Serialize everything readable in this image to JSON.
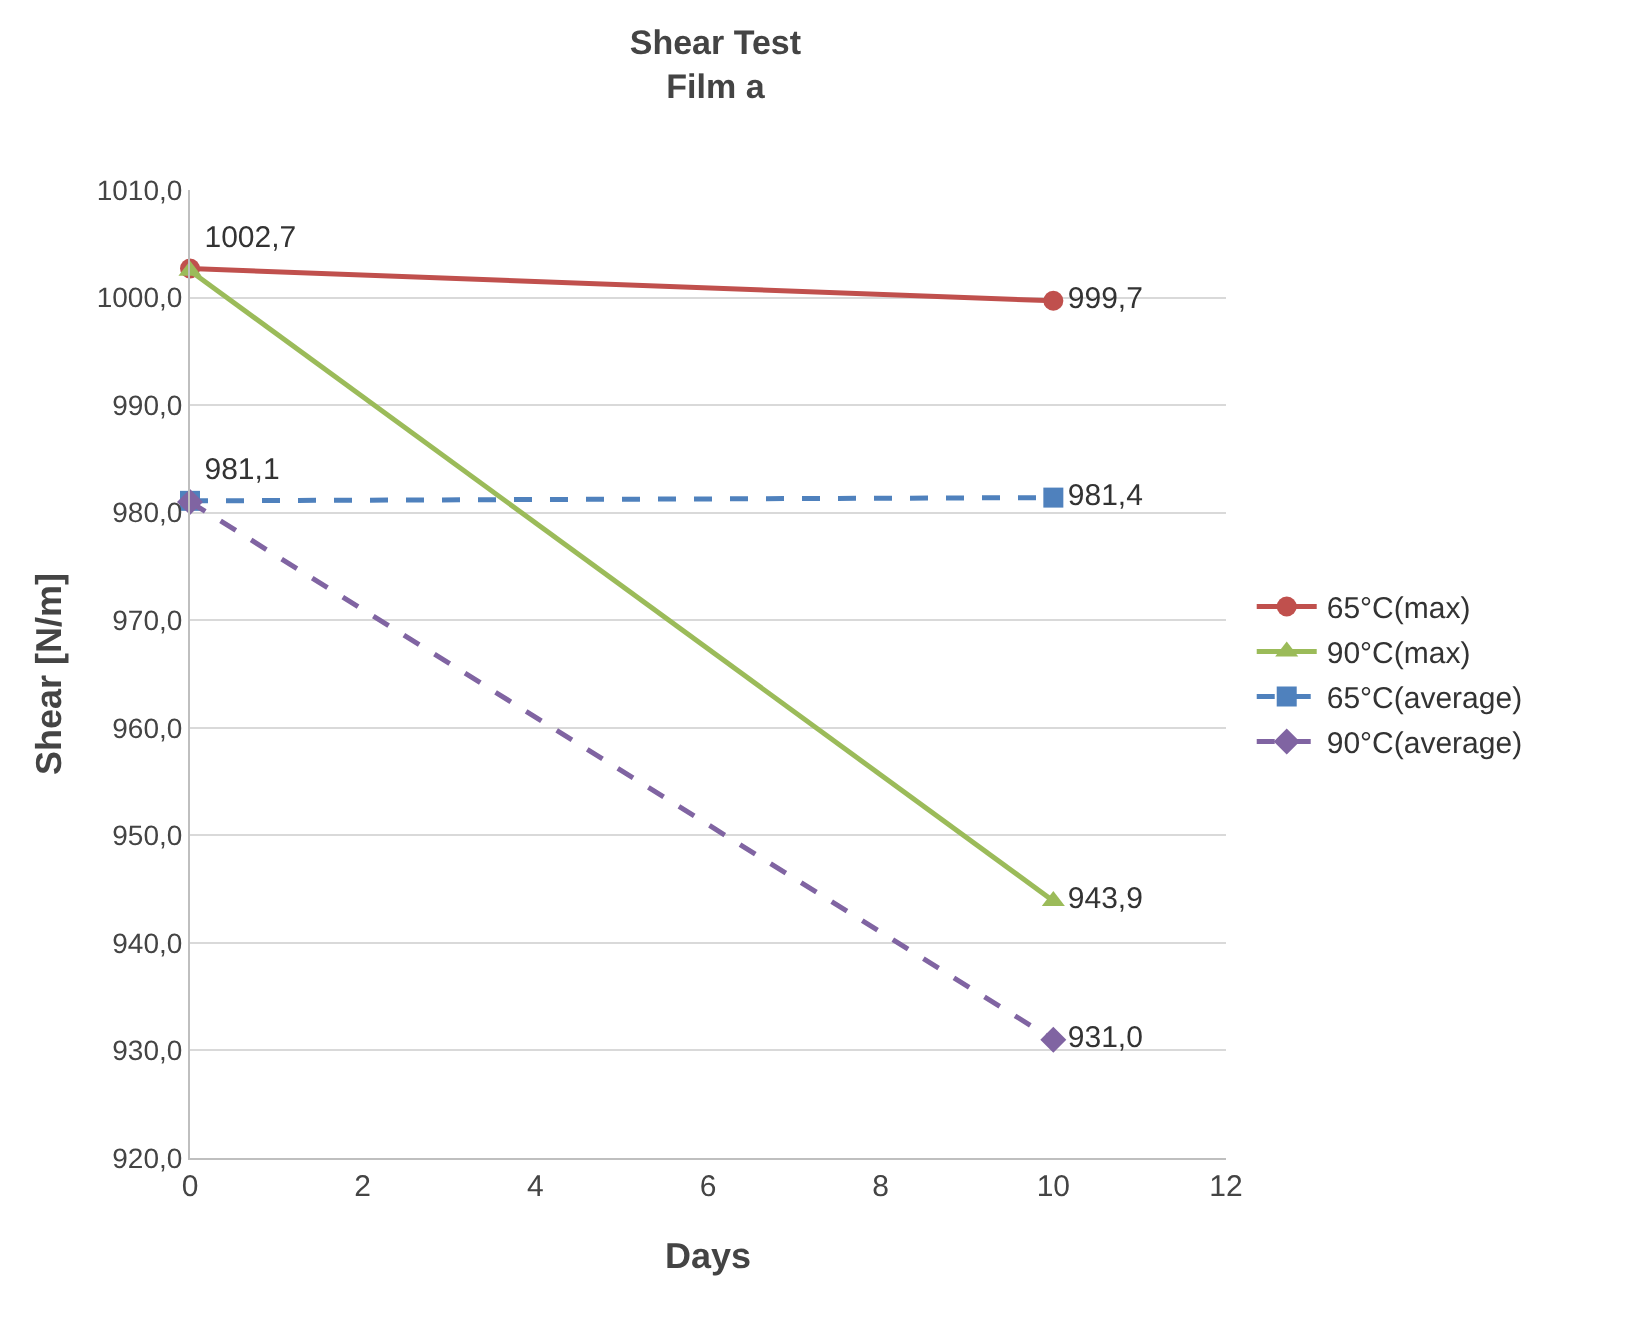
{
  "chart_data": {
    "type": "line",
    "title": "Shear Test\nFilm a",
    "xlabel": "Days",
    "ylabel": "Shear [N/m]",
    "x": [
      0,
      10
    ],
    "series": [
      {
        "name": "65°C(max)",
        "color": "#c0504d",
        "values": [
          1002.7,
          999.7
        ],
        "marker": "circle",
        "line_style": "solid",
        "value_labels": [
          "1002,7",
          "999,7"
        ]
      },
      {
        "name": "90°C(max)",
        "color": "#9bbb59",
        "values": [
          1002.5,
          943.9
        ],
        "marker": "triangle",
        "line_style": "solid",
        "value_labels": [
          null,
          "943,9"
        ]
      },
      {
        "name": "65°C(average)",
        "color": "#4f81bd",
        "values": [
          981.1,
          981.4
        ],
        "marker": "square",
        "line_style": "dashed",
        "value_labels": [
          "981,1",
          "981,4"
        ]
      },
      {
        "name": "90°C(average)",
        "color": "#8064a2",
        "values": [
          981.0,
          931.0
        ],
        "marker": "diamond",
        "line_style": "dashed",
        "value_labels": [
          null,
          "931,0"
        ]
      }
    ],
    "xlim": [
      0,
      12
    ],
    "xticks": [
      0,
      2,
      4,
      6,
      8,
      10,
      12
    ],
    "ylim": [
      920,
      1010
    ],
    "yticks": [
      {
        "value": 920,
        "label": "920,0"
      },
      {
        "value": 930,
        "label": "930,0"
      },
      {
        "value": 940,
        "label": "940,0"
      },
      {
        "value": 950,
        "label": "950,0"
      },
      {
        "value": 960,
        "label": "960,0"
      },
      {
        "value": 970,
        "label": "970,0"
      },
      {
        "value": 980,
        "label": "980,0"
      },
      {
        "value": 990,
        "label": "990,0"
      },
      {
        "value": 1000,
        "label": "1000,0"
      },
      {
        "value": 1010,
        "label": "1010,0"
      }
    ],
    "grid": "y",
    "legend": "right"
  }
}
